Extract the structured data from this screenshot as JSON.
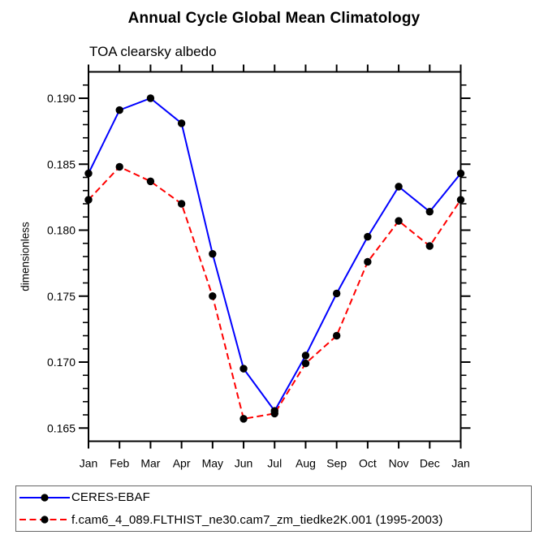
{
  "title": "Annual Cycle Global Mean Climatology",
  "subtitle": "TOA clearsky albedo",
  "ylabel": "dimensionless",
  "chart_data": {
    "type": "line",
    "categories": [
      "Jan",
      "Feb",
      "Mar",
      "Apr",
      "May",
      "Jun",
      "Jul",
      "Aug",
      "Sep",
      "Oct",
      "Nov",
      "Dec",
      "Jan"
    ],
    "series": [
      {
        "name": "CERES-EBAF",
        "color": "#0000ff",
        "line_style": "solid",
        "values": [
          0.1843,
          0.1891,
          0.19,
          0.1881,
          0.1782,
          0.1695,
          0.1663,
          0.1705,
          0.1752,
          0.1795,
          0.1833,
          0.1814,
          0.1843
        ]
      },
      {
        "name": "f.cam6_4_089.FLTHIST_ne30.cam7_zm_tiedke2K.001 (1995-2003)",
        "color": "#ff0000",
        "line_style": "dashed",
        "values": [
          0.1823,
          0.1848,
          0.1837,
          0.182,
          0.175,
          0.1657,
          0.1661,
          0.1699,
          0.172,
          0.1776,
          0.1807,
          0.1788,
          0.1823
        ]
      }
    ],
    "yticks": [
      0.165,
      0.17,
      0.175,
      0.18,
      0.185,
      0.19
    ],
    "ytick_labels": [
      "0.165",
      "0.170",
      "0.175",
      "0.180",
      "0.185",
      "0.190"
    ],
    "minor_tick_step": 0.001,
    "ylim": [
      0.164,
      0.192
    ],
    "marker": "circle",
    "marker_color": "#000000",
    "axis_color": "#000000",
    "grid": false,
    "legend_position": "bottom-left"
  }
}
